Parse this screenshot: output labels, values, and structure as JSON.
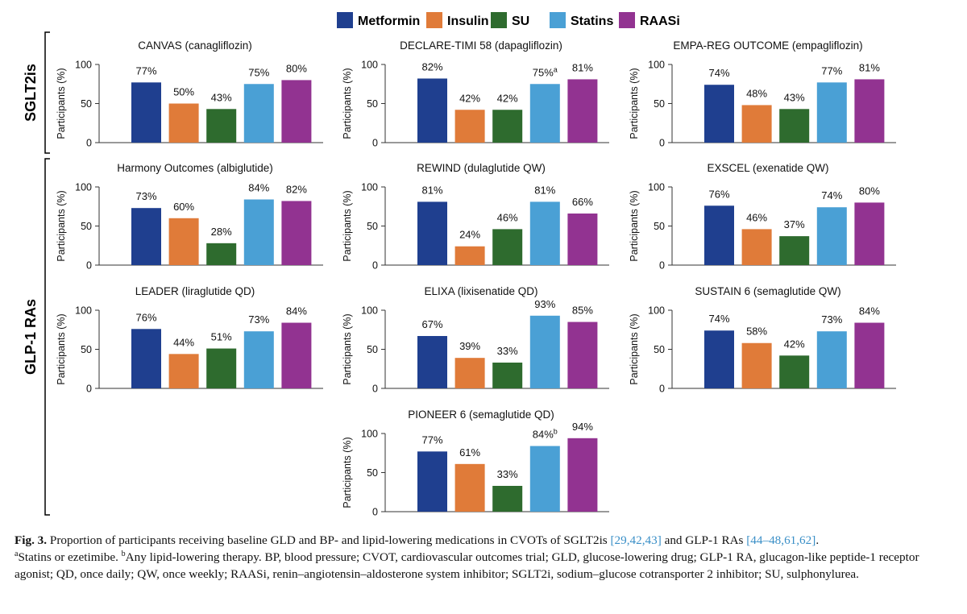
{
  "colors": {
    "Metformin": "#1f3f8f",
    "Insulin": "#e07b39",
    "SU": "#2e6b2e",
    "Statins": "#4aa0d5",
    "RAASi": "#923391"
  },
  "legend": [
    "Metformin",
    "Insulin",
    "SU",
    "Statins",
    "RAASi"
  ],
  "groups": [
    {
      "label": "SGLT2is"
    },
    {
      "label": "GLP-1 RAs"
    }
  ],
  "chart_data": [
    {
      "type": "bar",
      "group": "SGLT2is",
      "title": "CANVAS (canagliflozin)",
      "ylabel": "Participants (%)",
      "ylim": [
        0,
        100
      ],
      "yticks": [
        0,
        50,
        100
      ],
      "categories": [
        "Metformin",
        "Insulin",
        "SU",
        "Statins",
        "RAASi"
      ],
      "values": [
        77,
        50,
        43,
        75,
        80
      ],
      "labels": [
        "77%",
        "50%",
        "43%",
        "75%",
        "80%"
      ],
      "sups": [
        "",
        "",
        "",
        "",
        ""
      ]
    },
    {
      "type": "bar",
      "group": "SGLT2is",
      "title": "DECLARE-TIMI 58 (dapagliflozin)",
      "ylabel": "Participants (%)",
      "ylim": [
        0,
        100
      ],
      "yticks": [
        0,
        50,
        100
      ],
      "categories": [
        "Metformin",
        "Insulin",
        "SU",
        "Statins",
        "RAASi"
      ],
      "values": [
        82,
        42,
        42,
        75,
        81
      ],
      "labels": [
        "82%",
        "42%",
        "42%",
        "75%",
        "81%"
      ],
      "sups": [
        "",
        "",
        "",
        "a",
        ""
      ]
    },
    {
      "type": "bar",
      "group": "SGLT2is",
      "title": "EMPA-REG OUTCOME (empagliflozin)",
      "ylabel": "Participants (%)",
      "ylim": [
        0,
        100
      ],
      "yticks": [
        0,
        50,
        100
      ],
      "categories": [
        "Metformin",
        "Insulin",
        "SU",
        "Statins",
        "RAASi"
      ],
      "values": [
        74,
        48,
        43,
        77,
        81
      ],
      "labels": [
        "74%",
        "48%",
        "43%",
        "77%",
        "81%"
      ],
      "sups": [
        "",
        "",
        "",
        "",
        ""
      ]
    },
    {
      "type": "bar",
      "group": "GLP-1 RAs",
      "title": "Harmony Outcomes (albiglutide)",
      "ylabel": "Participants (%)",
      "ylim": [
        0,
        100
      ],
      "yticks": [
        0,
        50,
        100
      ],
      "categories": [
        "Metformin",
        "Insulin",
        "SU",
        "Statins",
        "RAASi"
      ],
      "values": [
        73,
        60,
        28,
        84,
        82
      ],
      "labels": [
        "73%",
        "60%",
        "28%",
        "84%",
        "82%"
      ],
      "sups": [
        "",
        "",
        "",
        "",
        ""
      ]
    },
    {
      "type": "bar",
      "group": "GLP-1 RAs",
      "title": "REWIND (dulaglutide QW)",
      "ylabel": "Participants (%)",
      "ylim": [
        0,
        100
      ],
      "yticks": [
        0,
        50,
        100
      ],
      "categories": [
        "Metformin",
        "Insulin",
        "SU",
        "Statins",
        "RAASi"
      ],
      "values": [
        81,
        24,
        46,
        81,
        66
      ],
      "labels": [
        "81%",
        "24%",
        "46%",
        "81%",
        "66%"
      ],
      "sups": [
        "",
        "",
        "",
        "",
        ""
      ]
    },
    {
      "type": "bar",
      "group": "GLP-1 RAs",
      "title": "EXSCEL (exenatide QW)",
      "ylabel": "Participants (%)",
      "ylim": [
        0,
        100
      ],
      "yticks": [
        0,
        50,
        100
      ],
      "categories": [
        "Metformin",
        "Insulin",
        "SU",
        "Statins",
        "RAASi"
      ],
      "values": [
        76,
        46,
        37,
        74,
        80
      ],
      "labels": [
        "76%",
        "46%",
        "37%",
        "74%",
        "80%"
      ],
      "sups": [
        "",
        "",
        "",
        "",
        ""
      ]
    },
    {
      "type": "bar",
      "group": "GLP-1 RAs",
      "title": "LEADER (liraglutide QD)",
      "ylabel": "Participants (%)",
      "ylim": [
        0,
        100
      ],
      "yticks": [
        0,
        50,
        100
      ],
      "categories": [
        "Metformin",
        "Insulin",
        "SU",
        "Statins",
        "RAASi"
      ],
      "values": [
        76,
        44,
        51,
        73,
        84
      ],
      "labels": [
        "76%",
        "44%",
        "51%",
        "73%",
        "84%"
      ],
      "sups": [
        "",
        "",
        "",
        "",
        ""
      ]
    },
    {
      "type": "bar",
      "group": "GLP-1 RAs",
      "title": "ELIXA (lixisenatide QD)",
      "ylabel": "Participants (%)",
      "ylim": [
        0,
        100
      ],
      "yticks": [
        0,
        50,
        100
      ],
      "categories": [
        "Metformin",
        "Insulin",
        "SU",
        "Statins",
        "RAASi"
      ],
      "values": [
        67,
        39,
        33,
        93,
        85
      ],
      "labels": [
        "67%",
        "39%",
        "33%",
        "93%",
        "85%"
      ],
      "sups": [
        "",
        "",
        "",
        "",
        ""
      ]
    },
    {
      "type": "bar",
      "group": "GLP-1 RAs",
      "title": "SUSTAIN 6 (semaglutide QW)",
      "ylabel": "Participants (%)",
      "ylim": [
        0,
        100
      ],
      "yticks": [
        0,
        50,
        100
      ],
      "categories": [
        "Metformin",
        "Insulin",
        "SU",
        "Statins",
        "RAASi"
      ],
      "values": [
        74,
        58,
        42,
        73,
        84
      ],
      "labels": [
        "74%",
        "58%",
        "42%",
        "73%",
        "84%"
      ],
      "sups": [
        "",
        "",
        "",
        "",
        ""
      ]
    },
    {
      "type": "bar",
      "group": "GLP-1 RAs",
      "title": "PIONEER 6 (semaglutide QD)",
      "ylabel": "Participants (%)",
      "ylim": [
        0,
        100
      ],
      "yticks": [
        0,
        50,
        100
      ],
      "categories": [
        "Metformin",
        "Insulin",
        "SU",
        "Statins",
        "RAASi"
      ],
      "values": [
        77,
        61,
        33,
        84,
        94
      ],
      "labels": [
        "77%",
        "61%",
        "33%",
        "84%",
        "94%"
      ],
      "sups": [
        "",
        "",
        "",
        "b",
        ""
      ]
    }
  ],
  "caption": {
    "fig_label": "Fig. 3.",
    "text1": " Proportion of participants receiving baseline GLD and BP- and lipid-lowering medications in CVOTs of SGLT2is ",
    "ref1": "[29,42,43]",
    "text2": " and GLP-1 RAs ",
    "ref2": "[44–48,61,62]",
    "text3": ".",
    "sup_a": "a",
    "note_a": "Statins or ezetimibe. ",
    "sup_b": "b",
    "note_b": "Any lipid-lowering therapy. BP, blood pressure; CVOT, cardiovascular outcomes trial; GLD, glucose-lowering drug; GLP-1 RA, glucagon-like peptide-1 receptor agonist; QD, once daily; QW, once weekly; RAASi, renin–angiotensin–aldosterone system inhibitor; SGLT2i, sodium–glucose cotransporter 2 inhibitor; SU, sulphonylurea."
  }
}
